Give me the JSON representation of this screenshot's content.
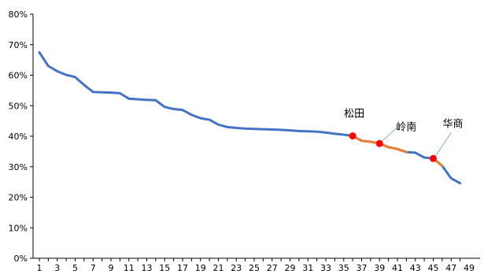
{
  "chart_data": {
    "type": "line",
    "title": "",
    "xlabel": "",
    "ylabel": "",
    "ylim": [
      0,
      80
    ],
    "y_ticks": [
      "0%",
      "10%",
      "20%",
      "30%",
      "40%",
      "50%",
      "60%",
      "70%",
      "80%"
    ],
    "x_tick_labels": [
      "1",
      "3",
      "5",
      "7",
      "9",
      "11",
      "13",
      "15",
      "17",
      "19",
      "21",
      "23",
      "25",
      "27",
      "29",
      "31",
      "33",
      "35",
      "37",
      "39",
      "41",
      "43",
      "45",
      "47",
      "49"
    ],
    "x": [
      1,
      2,
      3,
      4,
      5,
      6,
      7,
      8,
      9,
      10,
      11,
      12,
      13,
      14,
      15,
      16,
      17,
      18,
      19,
      20,
      21,
      22,
      23,
      24,
      25,
      26,
      27,
      28,
      29,
      30,
      31,
      32,
      33,
      34,
      35,
      36,
      37,
      38,
      39,
      40,
      41,
      42,
      43,
      44,
      45,
      46,
      47,
      48
    ],
    "series": [
      {
        "values": [
          67.5,
          63.0,
          61.3,
          60.1,
          59.4,
          56.8,
          54.5,
          54.4,
          54.3,
          54.1,
          52.3,
          52.1,
          51.9,
          51.8,
          49.6,
          48.9,
          48.6,
          47.0,
          45.9,
          45.4,
          43.8,
          43.0,
          42.7,
          42.5,
          42.4,
          42.3,
          42.2,
          42.1,
          41.9,
          41.7,
          41.6,
          41.5,
          41.2,
          40.8,
          40.5,
          40.1,
          38.5,
          38.2,
          37.6,
          36.4,
          35.8,
          34.8,
          34.6,
          33.0,
          32.7,
          30.3,
          26.2,
          24.6
        ],
        "color": "#4472C4"
      }
    ],
    "highlight_segments": [
      {
        "from_x": 36,
        "to_x": 39,
        "color": "#ED7D31"
      },
      {
        "from_x": 39,
        "to_x": 42,
        "color": "#ED7D31"
      },
      {
        "from_x": 45,
        "to_x": 46,
        "color": "#ED7D31"
      }
    ],
    "annotations": [
      {
        "label": "松田",
        "x": 36,
        "y": 40.1,
        "marker_color": "#FF0000"
      },
      {
        "label": "岭南",
        "x": 39,
        "y": 37.6,
        "marker_color": "#FF0000"
      },
      {
        "label": "华商",
        "x": 45,
        "y": 32.7,
        "marker_color": "#FF0000"
      }
    ],
    "grid": false,
    "legend": "none"
  }
}
